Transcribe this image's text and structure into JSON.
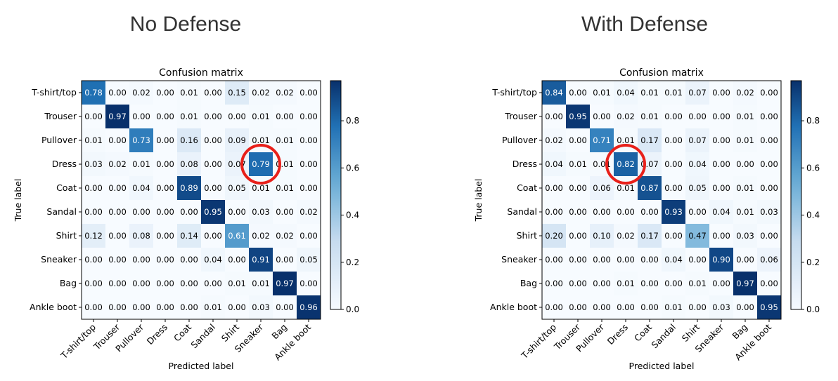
{
  "headings": {
    "left": "No Defense",
    "right": "With Defense"
  },
  "colorbar_ticks": [
    "0.0",
    "0.2",
    "0.4",
    "0.6",
    "0.8"
  ],
  "colors": {
    "low": "#f7fbff",
    "high": "#08306b",
    "circle": "#e8201a"
  },
  "chart_data": [
    {
      "type": "heatmap",
      "title": "Confusion matrix",
      "xlabel": "Predicted label",
      "ylabel": "True label",
      "labels": [
        "T-shirt/top",
        "Trouser",
        "Pullover",
        "Dress",
        "Coat",
        "Sandal",
        "Shirt",
        "Sneaker",
        "Bag",
        "Ankle boot"
      ],
      "cells": [
        [
          "0.78",
          "0.00",
          "0.02",
          "0.00",
          "0.01",
          "0.00",
          "0.15",
          "0.02",
          "0.02",
          "0.00"
        ],
        [
          "0.00",
          "0.97",
          "0.00",
          "0.00",
          "0.01",
          "0.00",
          "0.00",
          "0.01",
          "0.00",
          "0.00"
        ],
        [
          "0.01",
          "0.00",
          "0.73",
          "0.00",
          "0.16",
          "0.00",
          "0.09",
          "0.01",
          "0.01",
          "0.00"
        ],
        [
          "0.03",
          "0.02",
          "0.01",
          "0.00",
          "0.08",
          "0.00",
          "0.07",
          "0.79",
          "0.01",
          "0.00"
        ],
        [
          "0.00",
          "0.00",
          "0.04",
          "0.00",
          "0.89",
          "0.00",
          "0.05",
          "0.01",
          "0.01",
          "0.00"
        ],
        [
          "0.00",
          "0.00",
          "0.00",
          "0.00",
          "0.00",
          "0.95",
          "0.00",
          "0.03",
          "0.00",
          "0.02"
        ],
        [
          "0.12",
          "0.00",
          "0.08",
          "0.00",
          "0.14",
          "0.00",
          "0.61",
          "0.02",
          "0.02",
          "0.00"
        ],
        [
          "0.00",
          "0.00",
          "0.00",
          "0.00",
          "0.00",
          "0.04",
          "0.00",
          "0.91",
          "0.00",
          "0.05"
        ],
        [
          "0.00",
          "0.00",
          "0.00",
          "0.00",
          "0.00",
          "0.00",
          "0.01",
          "0.01",
          "0.97",
          "0.00"
        ],
        [
          "0.00",
          "0.00",
          "0.00",
          "0.00",
          "0.00",
          "0.01",
          "0.00",
          "0.03",
          "0.00",
          "0.96"
        ]
      ],
      "color_range": [
        0,
        0.97
      ],
      "highlight_cell": {
        "row": 3,
        "col": 7
      }
    },
    {
      "type": "heatmap",
      "title": "Confusion matrix",
      "xlabel": "Predicted label",
      "ylabel": "True label",
      "labels": [
        "T-shirt/top",
        "Trouser",
        "Pullover",
        "Dress",
        "Coat",
        "Sandal",
        "Shirt",
        "Sneaker",
        "Bag",
        "Ankle boot"
      ],
      "cells": [
        [
          "0.84",
          "0.00",
          "0.01",
          "0.04",
          "0.01",
          "0.01",
          "0.07",
          "0.00",
          "0.02",
          "0.00"
        ],
        [
          "0.00",
          "0.95",
          "0.00",
          "0.02",
          "0.01",
          "0.00",
          "0.00",
          "0.00",
          "0.01",
          "0.00"
        ],
        [
          "0.02",
          "0.00",
          "0.71",
          "0.01",
          "0.17",
          "0.00",
          "0.07",
          "0.00",
          "0.01",
          "0.00"
        ],
        [
          "0.04",
          "0.01",
          "0.01",
          "0.82",
          "0.07",
          "0.00",
          "0.04",
          "0.00",
          "0.00",
          "0.00"
        ],
        [
          "0.00",
          "0.00",
          "0.06",
          "0.01",
          "0.87",
          "0.00",
          "0.05",
          "0.00",
          "0.01",
          "0.00"
        ],
        [
          "0.00",
          "0.00",
          "0.00",
          "0.00",
          "0.00",
          "0.93",
          "0.00",
          "0.04",
          "0.01",
          "0.03"
        ],
        [
          "0.20",
          "0.00",
          "0.10",
          "0.02",
          "0.17",
          "0.00",
          "0.47",
          "0.00",
          "0.03",
          "0.00"
        ],
        [
          "0.00",
          "0.00",
          "0.00",
          "0.00",
          "0.00",
          "0.04",
          "0.00",
          "0.90",
          "0.00",
          "0.06"
        ],
        [
          "0.00",
          "0.00",
          "0.00",
          "0.01",
          "0.00",
          "0.00",
          "0.01",
          "0.00",
          "0.97",
          "0.00"
        ],
        [
          "0.00",
          "0.00",
          "0.00",
          "0.00",
          "0.00",
          "0.01",
          "0.00",
          "0.03",
          "0.00",
          "0.95"
        ]
      ],
      "color_range": [
        0,
        0.97
      ],
      "highlight_cell": {
        "row": 3,
        "col": 3
      }
    }
  ]
}
